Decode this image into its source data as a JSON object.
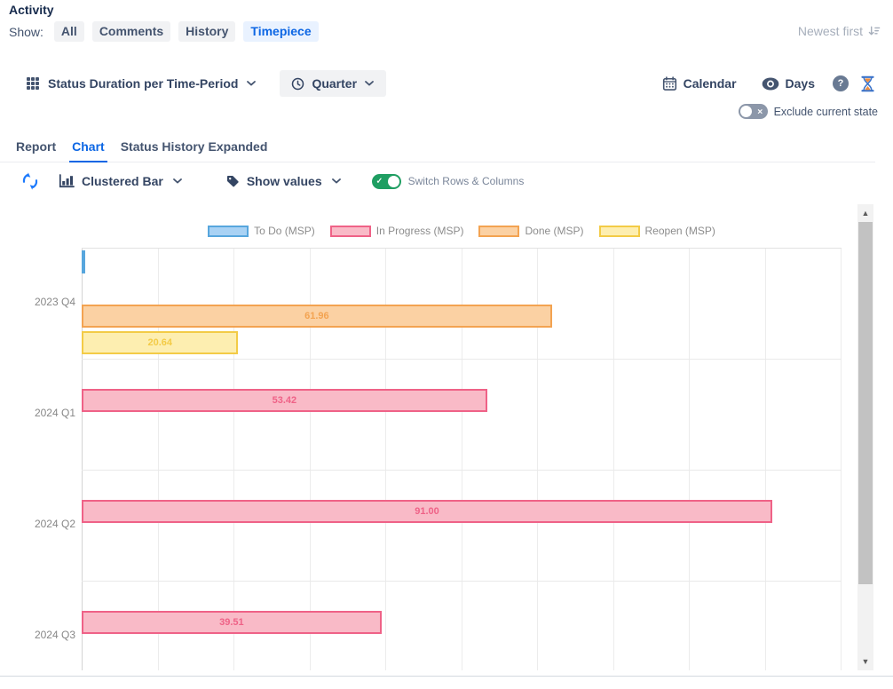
{
  "header": {
    "title": "Activity",
    "show_label": "Show:",
    "filters": [
      {
        "key": "all",
        "label": "All",
        "active": false
      },
      {
        "key": "comments",
        "label": "Comments",
        "active": false
      },
      {
        "key": "history",
        "label": "History",
        "active": false
      },
      {
        "key": "timepiece",
        "label": "Timepiece",
        "active": true
      }
    ],
    "sort_label": "Newest first"
  },
  "toolbar": {
    "report_selector": "Status Duration per Time-Period",
    "period_selector": "Quarter",
    "calendar_label": "Calendar",
    "unit_label": "Days",
    "exclude_label": "Exclude current state",
    "exclude_on": false
  },
  "tabs": [
    {
      "key": "report",
      "label": "Report",
      "active": false
    },
    {
      "key": "chart",
      "label": "Chart",
      "active": true
    },
    {
      "key": "status-history-expanded",
      "label": "Status History Expanded",
      "active": false
    }
  ],
  "controls": {
    "chart_type": "Clustered Bar",
    "values_label": "Show values",
    "switch_label": "Switch Rows & Columns",
    "switch_on": true
  },
  "icons": {
    "sort": "sort-descending-icon",
    "report_selector": "grid-icon",
    "period": "clock-icon",
    "calendar": "calendar-icon",
    "unit": "eye-icon",
    "help": "question-mark-icon",
    "timer": "hourglass-icon",
    "refresh": "refresh-icon",
    "chart_type": "bar-chart-icon",
    "values": "tag-icon"
  },
  "colors": {
    "accent_blue": "#0c66e4",
    "toggle_green": "#1f9e62",
    "tab_underline": "#0c66e4"
  },
  "chart_data": {
    "type": "bar",
    "orientation": "horizontal",
    "title": "",
    "xlabel": "",
    "ylabel": "",
    "xlim": [
      0,
      100
    ],
    "gridline_step": 10,
    "grid": true,
    "legend_position": "top-center",
    "show_values": true,
    "value_decimals": 2,
    "categories": [
      "2023 Q4",
      "2024 Q1",
      "2024 Q2",
      "2024 Q3"
    ],
    "series": [
      {
        "key": "todo",
        "name": "To Do (MSP)",
        "fill": "#a9d2f4",
        "border": "#57a6dd",
        "values": [
          0.2,
          null,
          null,
          null
        ]
      },
      {
        "key": "inprogress",
        "name": "In Progress (MSP)",
        "fill": "#f9bac7",
        "border": "#ef6287",
        "values": [
          null,
          53.42,
          91.0,
          39.51
        ]
      },
      {
        "key": "done",
        "name": "Done (MSP)",
        "fill": "#fbd1a3",
        "border": "#f3a351",
        "values": [
          61.96,
          null,
          null,
          null
        ]
      },
      {
        "key": "reopen",
        "name": "Reopen (MSP)",
        "fill": "#fdeeb0",
        "border": "#f3cb46",
        "values": [
          20.64,
          null,
          null,
          null
        ]
      }
    ]
  }
}
